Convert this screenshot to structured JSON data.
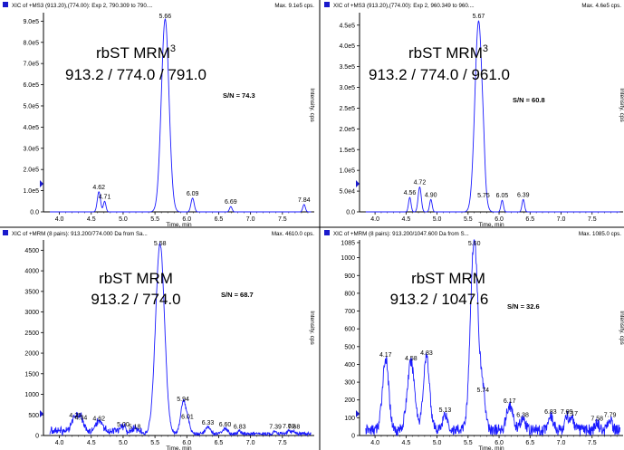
{
  "chart_data": [
    {
      "type": "line",
      "header": "XIC of +MS3 (913.20),(774.00): Exp 2, 790.309 to 790....",
      "max_label": "Max. 9.1e5 cps.",
      "title_line1": "rbST MRM",
      "title_sup": "3",
      "title_line2": "913.2 / 774.0 / 791.0",
      "sn_label": "S/N = 74.3",
      "ylabel": "Intensity, cps",
      "xlabel": "Time, min",
      "xlim": [
        3.75,
        8.0
      ],
      "ylim": [
        0,
        940000
      ],
      "x_ticks": [
        "4.0",
        "4.5",
        "5.0",
        "5.5",
        "6.0",
        "6.5",
        "7.0",
        "7.5"
      ],
      "y_ticks": [
        "0.0",
        "1.0e5",
        "2.0e5",
        "3.0e5",
        "4.0e5",
        "5.0e5",
        "6.0e5",
        "7.0e5",
        "8.0e5",
        "9.0e5"
      ],
      "peak_labels": [
        "4.62",
        "4.71",
        "5.66",
        "6.09",
        "6.69",
        "7.84"
      ],
      "peak_times": [
        4.62,
        4.71,
        5.66,
        6.09,
        6.69,
        7.84
      ],
      "peak_heights": [
        95000,
        50000,
        910000,
        65000,
        25000,
        35000
      ],
      "peak_widths": [
        0.025,
        0.02,
        0.06,
        0.025,
        0.02,
        0.02
      ],
      "noise": 0
    },
    {
      "type": "line",
      "header": "XIC of +MS3 (913.20),(774.00): Exp 2, 960.349 to 960....",
      "max_label": "Max. 4.6e5 cps.",
      "title_line1": "rbST MRM",
      "title_sup": "3",
      "title_line2": "913.2 / 774.0 / 961.0",
      "sn_label": "S/N = 60.8",
      "ylabel": "Intensity, cps",
      "xlabel": "Time, min",
      "xlim": [
        3.75,
        8.0
      ],
      "ylim": [
        0,
        480000
      ],
      "x_ticks": [
        "4.0",
        "4.5",
        "5.0",
        "5.5",
        "6.0",
        "6.5",
        "7.0",
        "7.5"
      ],
      "y_ticks": [
        "0.0",
        "5.0e4",
        "1.0e5",
        "1.5e5",
        "2.0e5",
        "2.5e5",
        "3.0e5",
        "3.5e5",
        "4.0e5",
        "4.5e5"
      ],
      "peak_labels": [
        "4.56",
        "4.72",
        "4.90",
        "5.67",
        "5.75",
        "6.05",
        "6.39"
      ],
      "peak_times": [
        4.56,
        4.72,
        4.9,
        5.67,
        5.75,
        6.05,
        6.39
      ],
      "peak_heights": [
        35000,
        60000,
        30000,
        460000,
        28000,
        28000,
        30000
      ],
      "peak_widths": [
        0.02,
        0.025,
        0.02,
        0.06,
        0.02,
        0.02,
        0.02
      ],
      "noise": 0
    },
    {
      "type": "line",
      "header": "XIC of +MRM (8 pairs): 913.200/774.000 Da from Sa...",
      "max_label": "Max. 4610.0 cps.",
      "title_line1": "rbST MRM",
      "title_sup": "",
      "title_line2": "913.2 / 774.0",
      "sn_label": "S/N = 68.7",
      "ylabel": "Intensity, cps",
      "xlabel": "Time, min",
      "xlim": [
        3.75,
        8.0
      ],
      "ylim": [
        0,
        4750
      ],
      "x_ticks": [
        "4.0",
        "4.5",
        "5.0",
        "5.5",
        "6.0",
        "6.5",
        "7.0",
        "7.5"
      ],
      "y_ticks": [
        "0",
        "500",
        "1000",
        "1500",
        "2000",
        "2500",
        "3000",
        "3500",
        "4000",
        "4500"
      ],
      "peak_labels": [
        "4.25",
        "4.34",
        "4.62",
        "5.00",
        "5.18",
        "5.58",
        "5.94",
        "6.01",
        "6.33",
        "6.60",
        "6.83",
        "7.39",
        "7.60",
        "7.68"
      ],
      "peak_times": [
        4.25,
        4.34,
        4.62,
        5.0,
        5.18,
        5.58,
        5.94,
        6.01,
        6.33,
        6.6,
        6.83,
        7.39,
        7.6,
        7.68
      ],
      "peak_heights": [
        340,
        280,
        260,
        120,
        60,
        4610,
        730,
        300,
        160,
        120,
        60,
        60,
        70,
        60
      ],
      "peak_widths": [
        0.05,
        0.04,
        0.05,
        0.03,
        0.03,
        0.07,
        0.04,
        0.04,
        0.04,
        0.04,
        0.03,
        0.03,
        0.03,
        0.03
      ],
      "noise": 90
    },
    {
      "type": "line",
      "header": "XIC of +MRM (8 pairs): 913.200/1047.600 Da from S...",
      "max_label": "Max. 1085.0 cps.",
      "title_line1": "rbST MRM",
      "title_sup": "",
      "title_line2": "913.2 / 1047.6",
      "sn_label": "S/N = 32.6",
      "ylabel": "Intensity, cps",
      "xlabel": "Time, min",
      "xlim": [
        3.75,
        8.0
      ],
      "ylim": [
        0,
        1100
      ],
      "x_ticks": [
        "4.0",
        "4.5",
        "5.0",
        "5.5",
        "6.0",
        "6.5",
        "7.0",
        "7.5"
      ],
      "y_ticks": [
        "0",
        "100",
        "200",
        "300",
        "400",
        "500",
        "600",
        "700",
        "800",
        "900",
        "1000",
        "1085"
      ],
      "peak_labels": [
        "4.17",
        "4.58",
        "4.83",
        "5.13",
        "5.60",
        "5.74",
        "6.17",
        "6.38",
        "6.83",
        "7.09",
        "7.17",
        "7.58",
        "7.79"
      ],
      "peak_times": [
        4.17,
        4.58,
        4.83,
        5.13,
        5.6,
        5.74,
        6.17,
        6.38,
        6.83,
        7.09,
        7.17,
        7.58,
        7.79
      ],
      "peak_heights": [
        400,
        380,
        410,
        90,
        1085,
        200,
        140,
        60,
        80,
        80,
        70,
        40,
        60
      ],
      "peak_widths": [
        0.05,
        0.06,
        0.05,
        0.04,
        0.06,
        0.04,
        0.05,
        0.04,
        0.04,
        0.03,
        0.03,
        0.03,
        0.03
      ],
      "noise": 70
    }
  ],
  "colors": {
    "trace": "#1a1aff",
    "marker": "#1a1acc",
    "text": "#000000",
    "frame": "#000000"
  }
}
